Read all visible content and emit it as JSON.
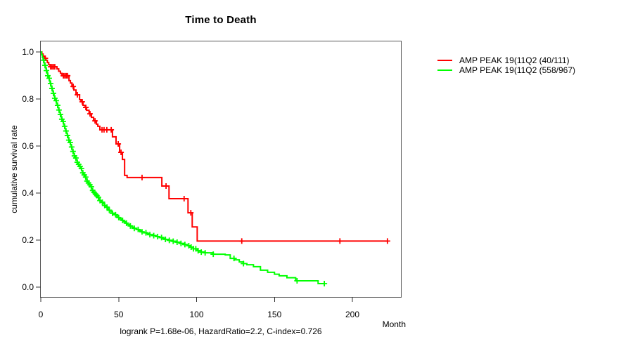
{
  "chart_data": {
    "type": "line",
    "subtype": "kaplan-meier-step",
    "title": "Time to Death",
    "xlabel": "Month",
    "ylabel": "cumulative survival rate",
    "annotation": "logrank P=1.68e-06, HazardRatio=2.2, C-index=0.726",
    "xlim": [
      0,
      231
    ],
    "ylim": [
      0,
      1.04
    ],
    "x_ticks": [
      0,
      50,
      100,
      150,
      200
    ],
    "y_ticks": [
      0.0,
      0.2,
      0.4,
      0.6,
      0.8,
      1.0
    ],
    "y_tick_labels": [
      "0.0",
      "0.2",
      "0.4",
      "0.6",
      "0.8",
      "1.0"
    ],
    "grid": false,
    "legend_position": "right-outside",
    "series": [
      {
        "name": "AMP PEAK 19(11Q2 (40/111)",
        "color": "#ff0000",
        "steps": [
          [
            0,
            1.0
          ],
          [
            0.7,
            0.991
          ],
          [
            1.5,
            0.982
          ],
          [
            2.4,
            0.973
          ],
          [
            3.3,
            0.964
          ],
          [
            4.2,
            0.955
          ],
          [
            5.1,
            0.946
          ],
          [
            6,
            0.937
          ],
          [
            10.4,
            0.928
          ],
          [
            11.5,
            0.918
          ],
          [
            12.6,
            0.909
          ],
          [
            13.6,
            0.899
          ],
          [
            18.1,
            0.878
          ],
          [
            19,
            0.868
          ],
          [
            20,
            0.853
          ],
          [
            21.2,
            0.838
          ],
          [
            22.6,
            0.818
          ],
          [
            24.9,
            0.797
          ],
          [
            25.8,
            0.788
          ],
          [
            27.1,
            0.773
          ],
          [
            28.5,
            0.764
          ],
          [
            29.4,
            0.752
          ],
          [
            31,
            0.737
          ],
          [
            32.5,
            0.722
          ],
          [
            33.9,
            0.707
          ],
          [
            35.7,
            0.693
          ],
          [
            36.6,
            0.684
          ],
          [
            37.9,
            0.669
          ],
          [
            46,
            0.639
          ],
          [
            48.3,
            0.609
          ],
          [
            50.6,
            0.573
          ],
          [
            52.4,
            0.543
          ],
          [
            53.8,
            0.475
          ],
          [
            55.4,
            0.466
          ],
          [
            77.7,
            0.43
          ],
          [
            82.3,
            0.376
          ],
          [
            94.5,
            0.316
          ],
          [
            97.2,
            0.256
          ],
          [
            100.4,
            0.196
          ]
        ],
        "end_month": 222.5,
        "censor_months": [
          2.9,
          6.3,
          7.2,
          8.1,
          9.0,
          14.5,
          15.4,
          16.3,
          17.2,
          20.8,
          23.5,
          26.6,
          28.9,
          31.6,
          34.8,
          39.3,
          40.6,
          42.4,
          45.2,
          49.7,
          51.5,
          65,
          80.4,
          92,
          96.3,
          129,
          192,
          222.5
        ]
      },
      {
        "name": "AMP PEAK 19(11Q2 (558/967)",
        "color": "#00ff00",
        "steps": [
          [
            0,
            1.0
          ],
          [
            0.5,
            0.988
          ],
          [
            1,
            0.976
          ],
          [
            1.5,
            0.965
          ],
          [
            2,
            0.954
          ],
          [
            2.5,
            0.943
          ],
          [
            3,
            0.932
          ],
          [
            3.5,
            0.921
          ],
          [
            4,
            0.91
          ],
          [
            4.5,
            0.899
          ],
          [
            5,
            0.888
          ],
          [
            5.5,
            0.877
          ],
          [
            6,
            0.866
          ],
          [
            6.5,
            0.855
          ],
          [
            7,
            0.845
          ],
          [
            7.5,
            0.834
          ],
          [
            8,
            0.824
          ],
          [
            8.5,
            0.813
          ],
          [
            9,
            0.803
          ],
          [
            9.5,
            0.793
          ],
          [
            10,
            0.783
          ],
          [
            10.5,
            0.773
          ],
          [
            11,
            0.763
          ],
          [
            11.5,
            0.753
          ],
          [
            12,
            0.743
          ],
          [
            12.5,
            0.734
          ],
          [
            13,
            0.724
          ],
          [
            13.5,
            0.714
          ],
          [
            14,
            0.704
          ],
          [
            14.5,
            0.694
          ],
          [
            15,
            0.684
          ],
          [
            15.5,
            0.674
          ],
          [
            16,
            0.664
          ],
          [
            16.5,
            0.654
          ],
          [
            17,
            0.645
          ],
          [
            17.5,
            0.635
          ],
          [
            18,
            0.625
          ],
          [
            18.5,
            0.615
          ],
          [
            19,
            0.606
          ],
          [
            19.5,
            0.596
          ],
          [
            20,
            0.586
          ],
          [
            20.5,
            0.577
          ],
          [
            21,
            0.567
          ],
          [
            21.5,
            0.558
          ],
          [
            22,
            0.549
          ],
          [
            22.7,
            0.54
          ],
          [
            23.4,
            0.531
          ],
          [
            24.1,
            0.522
          ],
          [
            24.8,
            0.513
          ],
          [
            25.5,
            0.504
          ],
          [
            26.2,
            0.495
          ],
          [
            26.9,
            0.486
          ],
          [
            27.6,
            0.477
          ],
          [
            28.3,
            0.468
          ],
          [
            29,
            0.459
          ],
          [
            29.7,
            0.451
          ],
          [
            30.4,
            0.443
          ],
          [
            31.1,
            0.435
          ],
          [
            31.8,
            0.427
          ],
          [
            32.5,
            0.419
          ],
          [
            33.2,
            0.411
          ],
          [
            34,
            0.403
          ],
          [
            34.8,
            0.396
          ],
          [
            35.6,
            0.389
          ],
          [
            36.4,
            0.382
          ],
          [
            37.2,
            0.375
          ],
          [
            38,
            0.368
          ],
          [
            39,
            0.361
          ],
          [
            40,
            0.354
          ],
          [
            41,
            0.347
          ],
          [
            42,
            0.34
          ],
          [
            43,
            0.333
          ],
          [
            44,
            0.327
          ],
          [
            45,
            0.32
          ],
          [
            46,
            0.314
          ],
          [
            47.2,
            0.308
          ],
          [
            48.4,
            0.302
          ],
          [
            49.6,
            0.296
          ],
          [
            50.8,
            0.29
          ],
          [
            52,
            0.284
          ],
          [
            53.2,
            0.278
          ],
          [
            54.4,
            0.272
          ],
          [
            55.6,
            0.266
          ],
          [
            57,
            0.26
          ],
          [
            58.5,
            0.255
          ],
          [
            60,
            0.25
          ],
          [
            61.5,
            0.245
          ],
          [
            63,
            0.24
          ],
          [
            64.5,
            0.235
          ],
          [
            66,
            0.231
          ],
          [
            68,
            0.227
          ],
          [
            70,
            0.223
          ],
          [
            72,
            0.219
          ],
          [
            74,
            0.215
          ],
          [
            76,
            0.211
          ],
          [
            78,
            0.207
          ],
          [
            80,
            0.203
          ],
          [
            82,
            0.199
          ],
          [
            84.5,
            0.195
          ],
          [
            87,
            0.191
          ],
          [
            89.5,
            0.186
          ],
          [
            92,
            0.181
          ],
          [
            94,
            0.176
          ],
          [
            96,
            0.17
          ],
          [
            98,
            0.163
          ],
          [
            100.4,
            0.155
          ],
          [
            103,
            0.149
          ],
          [
            105.5,
            0.146
          ],
          [
            110.7,
            0.14
          ],
          [
            118.4,
            0.137
          ],
          [
            121.6,
            0.122
          ],
          [
            124.3,
            0.116
          ],
          [
            127.4,
            0.107
          ],
          [
            130.1,
            0.1
          ],
          [
            132.3,
            0.095
          ],
          [
            136.5,
            0.087
          ],
          [
            141,
            0.072
          ],
          [
            145.6,
            0.063
          ],
          [
            150,
            0.055
          ],
          [
            153,
            0.048
          ],
          [
            158,
            0.04
          ],
          [
            163.6,
            0.027
          ],
          [
            178,
            0.015
          ]
        ],
        "end_month": 182,
        "censor_months": [
          1.8,
          2.7,
          3.6,
          4.5,
          5.4,
          6.3,
          7.2,
          8.1,
          9,
          9.9,
          10.8,
          11.7,
          12.6,
          13.5,
          14.4,
          15.3,
          16.2,
          17.1,
          18,
          18.9,
          19.8,
          20.7,
          21.6,
          22.5,
          23.4,
          24.3,
          25.2,
          26.1,
          27,
          27.9,
          28.8,
          29.7,
          30.6,
          31.5,
          32.4,
          33.3,
          34.2,
          35.1,
          36,
          37,
          38,
          39.5,
          41,
          42.5,
          44,
          46,
          48,
          50,
          52.5,
          55,
          57.5,
          60,
          62.5,
          65,
          67.5,
          70,
          72.5,
          75,
          77.5,
          80,
          82.5,
          85,
          87.5,
          90,
          92.5,
          95,
          96.5,
          98,
          99.5,
          101,
          103,
          105.5,
          110.7,
          124,
          130.1,
          164.5,
          182
        ]
      }
    ],
    "frame_color": "#555555",
    "tick_color": "#333333"
  }
}
